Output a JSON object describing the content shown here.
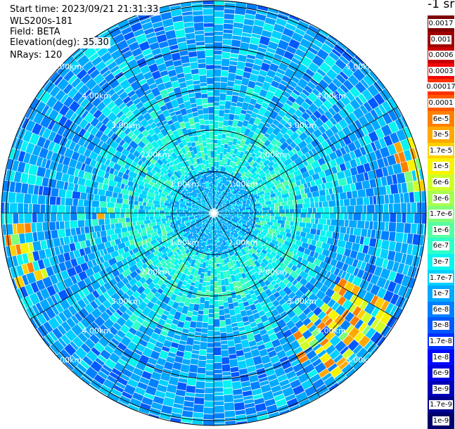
{
  "header": {
    "start_time": "Start time: 2023/09/21 21:31:33",
    "device": "WLS200s-181",
    "field": "Field: BETA",
    "elevation": "Elevation(deg): 35.30",
    "nrays": "NRays: 120"
  },
  "colorbar": {
    "unit_label": "-1 sr",
    "entries": [
      {
        "label": "0.0017",
        "color": "#7f0000"
      },
      {
        "label": "0.001",
        "color": "#a00000"
      },
      {
        "label": "0.0006",
        "color": "#c80000"
      },
      {
        "label": "0.0003",
        "color": "#f00808"
      },
      {
        "label": "0.00017",
        "color": "#ff3000"
      },
      {
        "label": "0.0001",
        "color": "#ff5800"
      },
      {
        "label": "6e-5",
        "color": "#ff8000"
      },
      {
        "label": "3e-5",
        "color": "#ffa800"
      },
      {
        "label": "1.7e-5",
        "color": "#ffd000"
      },
      {
        "label": "1e-5",
        "color": "#f8f400"
      },
      {
        "label": "6e-6",
        "color": "#d0ff28"
      },
      {
        "label": "3e-6",
        "color": "#a8ff50"
      },
      {
        "label": "1.7e-6",
        "color": "#80ff78"
      },
      {
        "label": "1e-6",
        "color": "#58ffa0"
      },
      {
        "label": "6e-7",
        "color": "#30ffc8"
      },
      {
        "label": "3e-7",
        "color": "#08f4f0"
      },
      {
        "label": "1.7e-7",
        "color": "#00d0ff"
      },
      {
        "label": "1e-7",
        "color": "#00a8ff"
      },
      {
        "label": "6e-8",
        "color": "#0080ff"
      },
      {
        "label": "3e-8",
        "color": "#0058ff"
      },
      {
        "label": "1.7e-8",
        "color": "#0030ff"
      },
      {
        "label": "1e-8",
        "color": "#0008ff"
      },
      {
        "label": "6e-9",
        "color": "#0000e0"
      },
      {
        "label": "3e-9",
        "color": "#0000b8"
      },
      {
        "label": "1.7e-9",
        "color": "#000090"
      },
      {
        "label": "1e-9",
        "color": "#00006a"
      }
    ]
  },
  "range_rings": {
    "labels": [
      "1.00km",
      "2.00km",
      "3.00km",
      "4.00km",
      "5.00km"
    ],
    "ring_color": "#000000",
    "spoke_color": "#000000"
  },
  "scan": {
    "rays": 120,
    "dominant_colors": [
      "#00a8ff",
      "#0080ff",
      "#00d0ff",
      "#08f4f0",
      "#0058ff",
      "#30ffc8",
      "#58ffa0"
    ],
    "hotspot_colors": [
      "#80ff78",
      "#d0ff28",
      "#f8f400",
      "#ffd000",
      "#ffa800",
      "#ff8000"
    ]
  }
}
